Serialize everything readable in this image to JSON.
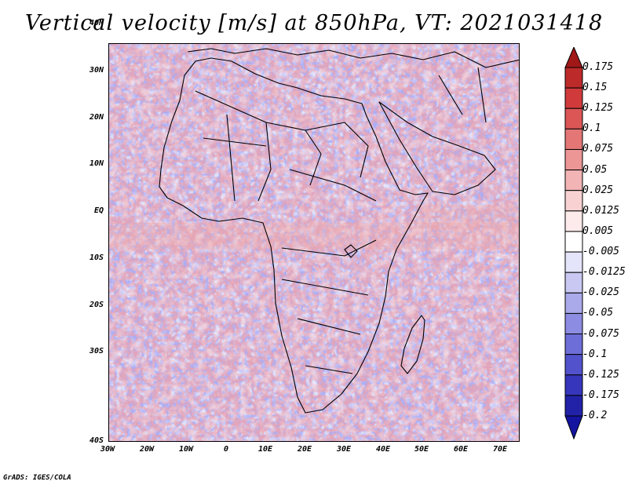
{
  "title": "Vertical velocity [m/s] at 850hPa, VT: 2021031418",
  "footer": "GrADS: IGES/COLA",
  "lat_labels": [
    "40N",
    "30N",
    "20N",
    "10N",
    "EQ",
    "10S",
    "20S",
    "30S",
    "40S"
  ],
  "lon_labels": [
    "30W",
    "20W",
    "10W",
    "0",
    "10E",
    "20E",
    "30E",
    "40E",
    "50E",
    "60E",
    "70E"
  ],
  "colorbar": {
    "labels": [
      "0.175",
      "0.15",
      "0.125",
      "0.1",
      "0.075",
      "0.05",
      "0.025",
      "0.0125",
      "0.005",
      "-0.005",
      "-0.0125",
      "-0.025",
      "-0.05",
      "-0.075",
      "-0.1",
      "-0.125",
      "-0.175",
      "-0.2"
    ],
    "colors": [
      "#a01818",
      "#bc2a2a",
      "#d03a3a",
      "#dc5656",
      "#e47676",
      "#ec9696",
      "#f2b4b4",
      "#f8d2d2",
      "#fdeaea",
      "#ffffff",
      "#e4e4fa",
      "#c8c8f2",
      "#aaaaea",
      "#8c8ce2",
      "#6e6ed8",
      "#5252cc",
      "#3636bc",
      "#2222a8",
      "#1414a0"
    ]
  }
}
